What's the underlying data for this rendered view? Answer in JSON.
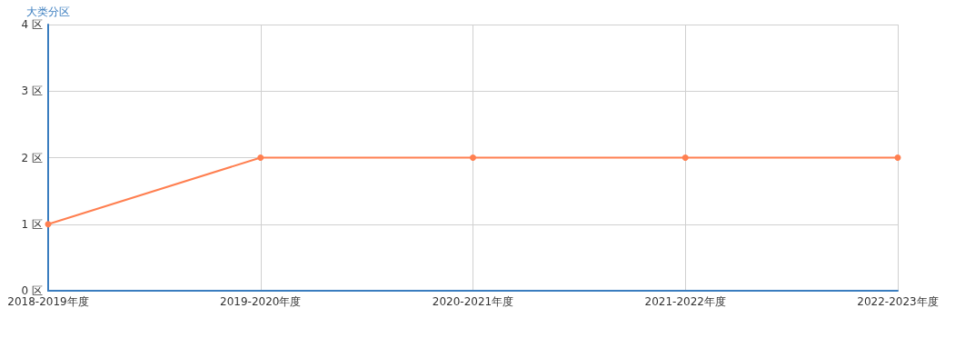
{
  "chart_data": {
    "type": "line",
    "ylabel": "大类分区",
    "categories": [
      "2018-2019年度",
      "2019-2020年度",
      "2020-2021年度",
      "2021-2022年度",
      "2022-2023年度"
    ],
    "series": [
      {
        "color": "#ff7f50",
        "values": [
          1,
          2,
          2,
          2,
          2
        ]
      }
    ],
    "ylim": [
      0,
      4
    ],
    "yticks": [
      {
        "value": 0,
        "label": "0 区"
      },
      {
        "value": 1,
        "label": "1 区"
      },
      {
        "value": 2,
        "label": "2 区"
      },
      {
        "value": 3,
        "label": "3 区"
      },
      {
        "value": 4,
        "label": "4 区"
      }
    ],
    "grid": true,
    "marker": "circle",
    "line_style": "solid"
  }
}
